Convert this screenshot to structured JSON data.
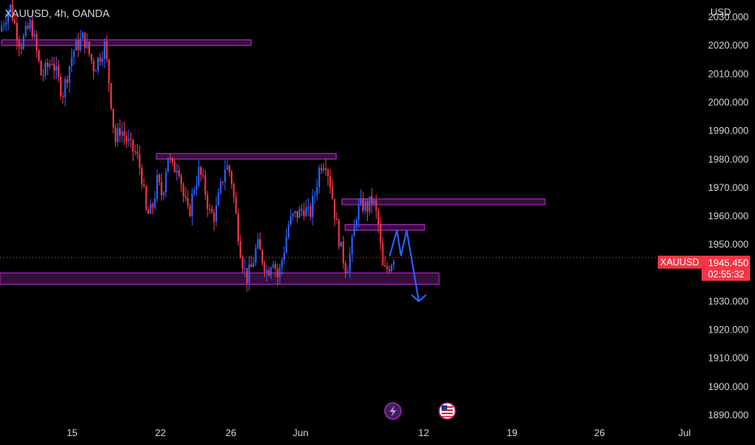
{
  "header": {
    "title": "XAUUSD, 4h, OANDA"
  },
  "price_axis": {
    "currency": "USD"
  },
  "current_price": {
    "symbol": "XAUUSD",
    "price": "1945.450",
    "countdown": "02:55:32"
  },
  "colors": {
    "up": "#2962ff",
    "down": "#f23645",
    "zone": "#9c27b0",
    "arrow": "#2962ff",
    "badge": "#f23645"
  },
  "icons": [
    "flash-icon",
    "us-flag-icon"
  ],
  "chart_data": {
    "type": "candlestick",
    "title": "XAUUSD, 4h, OANDA",
    "ylim": [
      1888,
      2036
    ],
    "yticks": [
      "2030.000",
      "2020.000",
      "2010.000",
      "2000.000",
      "1990.000",
      "1980.000",
      "1970.000",
      "1960.000",
      "1950.000",
      "1940.000",
      "1930.000",
      "1920.000",
      "1910.000",
      "1900.000",
      "1890.000"
    ],
    "xticks": [
      "15",
      "22",
      "26",
      "Jun",
      "12",
      "19",
      "26",
      "Jul"
    ],
    "last_price": 1945.45,
    "grid": false,
    "price_path": [
      [
        0,
        2025
      ],
      [
        2,
        2034
      ],
      [
        4,
        2020
      ],
      [
        6,
        2028
      ],
      [
        8,
        2009
      ],
      [
        10,
        2015
      ],
      [
        12,
        2003
      ],
      [
        14,
        2018
      ],
      [
        16,
        2023
      ],
      [
        18,
        2012
      ],
      [
        20,
        2020
      ],
      [
        21,
        2005
      ],
      [
        22,
        1986
      ],
      [
        23,
        1991
      ],
      [
        25,
        1984
      ],
      [
        26,
        1982
      ],
      [
        27,
        1975
      ],
      [
        28,
        1960
      ],
      [
        29,
        1962
      ],
      [
        30,
        1972
      ],
      [
        31,
        1967
      ],
      [
        32,
        1982
      ],
      [
        33,
        1976
      ],
      [
        34,
        1979
      ],
      [
        35,
        1967
      ],
      [
        36,
        1960
      ],
      [
        37,
        1970
      ],
      [
        38,
        1976
      ],
      [
        39,
        1970
      ],
      [
        40,
        1961
      ],
      [
        41,
        1960
      ],
      [
        42,
        1969
      ],
      [
        43,
        1978
      ],
      [
        44,
        1975
      ],
      [
        45,
        1960
      ],
      [
        46,
        1946
      ],
      [
        47,
        1938
      ],
      [
        48,
        1942
      ],
      [
        49,
        1950
      ],
      [
        50,
        1945
      ],
      [
        51,
        1940
      ],
      [
        52,
        1946
      ],
      [
        53,
        1938
      ],
      [
        54,
        1947
      ],
      [
        55,
        1957
      ],
      [
        56,
        1960
      ],
      [
        57,
        1961
      ],
      [
        58,
        1963
      ],
      [
        59,
        1960
      ],
      [
        60,
        1968
      ],
      [
        61,
        1978
      ],
      [
        62,
        1980
      ],
      [
        63,
        1971
      ],
      [
        64,
        1958
      ],
      [
        65,
        1948
      ],
      [
        66,
        1941
      ],
      [
        67,
        1949
      ],
      [
        68,
        1962
      ],
      [
        69,
        1964
      ],
      [
        70,
        1963
      ],
      [
        71,
        1966
      ],
      [
        72,
        1958
      ],
      [
        73,
        1940
      ],
      [
        74,
        1942
      ],
      [
        75,
        1946
      ]
    ],
    "zones": [
      {
        "price_top": 2022,
        "price_bottom": 2020
      },
      {
        "price_top": 1982,
        "price_bottom": 1980.5
      },
      {
        "price_top": 1966,
        "price_bottom": 1964.5
      },
      {
        "price_top": 1957,
        "price_bottom": 1955.5
      },
      {
        "price_top": 1940,
        "price_bottom": 1936
      }
    ],
    "projection": [
      1946,
      1955,
      1946,
      1955,
      1930
    ]
  }
}
